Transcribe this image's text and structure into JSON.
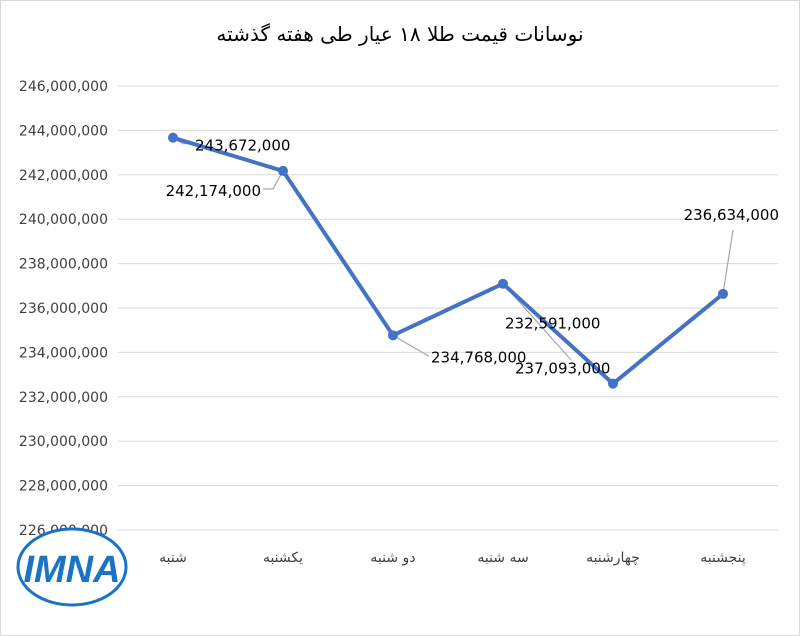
{
  "chart_data": {
    "type": "line",
    "title": "نوسانات قیمت طلا ۱۸ عیار طی هفته گذشته",
    "categories": [
      "شنبه",
      "یکشنبه",
      "دو شنبه",
      "سه شنبه",
      "چهارشنبه",
      "پنجشنبه"
    ],
    "series": [
      {
        "values": [
          243672000,
          242174000,
          234768000,
          237093000,
          232591000,
          236634000
        ],
        "labels": [
          "243,672,000",
          "242,174,000",
          "234,768,000",
          "237,093,000",
          "232,591,000",
          "236,634,000"
        ],
        "color": "#4472C4"
      }
    ],
    "ylim": [
      226000000,
      246000000
    ],
    "ytick_step": 2000000,
    "yticks": [
      "226,000,000",
      "228,000,000",
      "230,000,000",
      "232,000,000",
      "234,000,000",
      "236,000,000",
      "238,000,000",
      "240,000,000",
      "242,000,000",
      "244,000,000",
      "246,000,000"
    ],
    "grid": true,
    "gridline_color": "#d9d9d9"
  },
  "logo": {
    "text": "IMNA",
    "color": "#1a73c7"
  }
}
